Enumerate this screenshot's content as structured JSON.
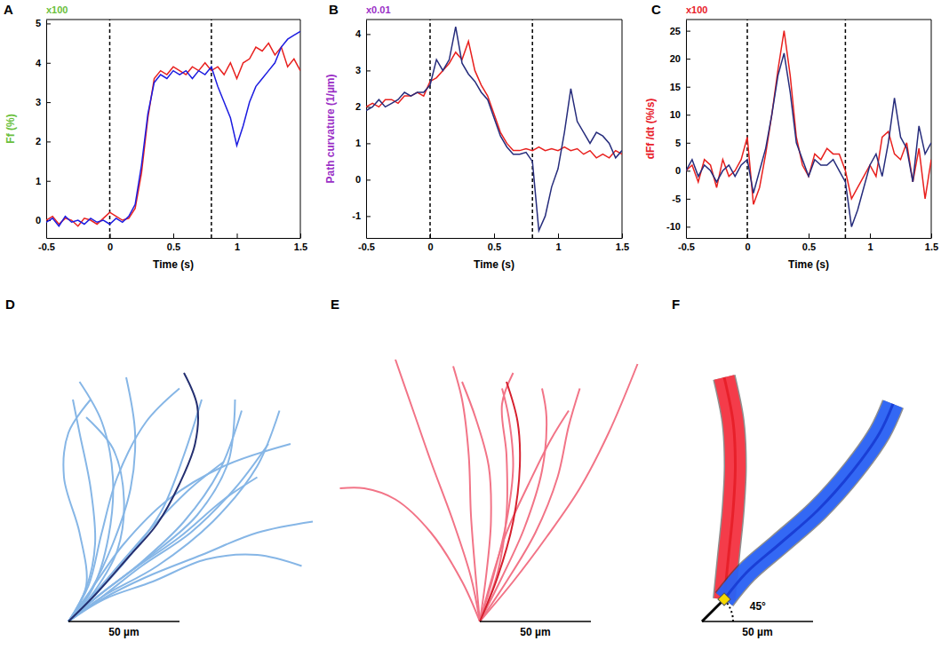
{
  "chart_data": [
    {
      "type": "line",
      "title": "A",
      "annotations": [
        "x100"
      ],
      "x_label": "Time (s)",
      "y_label": "Ff (%)",
      "x": [
        -0.5,
        -0.45,
        -0.4,
        -0.35,
        -0.3,
        -0.25,
        -0.2,
        -0.15,
        -0.1,
        -0.05,
        0,
        0.05,
        0.1,
        0.15,
        0.2,
        0.25,
        0.3,
        0.35,
        0.4,
        0.45,
        0.5,
        0.55,
        0.6,
        0.65,
        0.7,
        0.75,
        0.8,
        0.85,
        0.9,
        0.95,
        1,
        1.05,
        1.1,
        1.15,
        1.2,
        1.25,
        1.3,
        1.35,
        1.4,
        1.45,
        1.5
      ],
      "xlim": [
        -0.5,
        1.5
      ],
      "xticks": [
        -0.5,
        0,
        0.5,
        1,
        1.5
      ],
      "ylim": [
        -0.45,
        5.1
      ],
      "yticks": [
        0,
        1,
        2,
        3,
        4,
        5
      ],
      "vlines": [
        0,
        0.8
      ],
      "series": [
        {
          "color": "#e8201e",
          "values": [
            0.0,
            0.1,
            -0.1,
            0.05,
            0.0,
            -0.15,
            0.05,
            0.0,
            -0.1,
            0.05,
            0.2,
            0.1,
            0.0,
            0.05,
            0.3,
            1.2,
            2.6,
            3.6,
            3.8,
            3.7,
            3.9,
            3.8,
            3.7,
            3.9,
            3.8,
            4.0,
            3.8,
            3.9,
            3.7,
            4.0,
            3.6,
            4.0,
            4.1,
            4.4,
            4.3,
            4.5,
            4.2,
            4.4,
            3.9,
            4.1,
            3.8
          ]
        },
        {
          "color": "#1c1ce0",
          "values": [
            -0.05,
            0.05,
            -0.15,
            0.1,
            -0.05,
            0.0,
            -0.1,
            0.05,
            -0.05,
            0.0,
            -0.1,
            0.05,
            -0.05,
            0.1,
            0.4,
            1.4,
            2.7,
            3.5,
            3.7,
            3.6,
            3.8,
            3.7,
            3.8,
            3.6,
            3.8,
            3.7,
            3.9,
            3.4,
            3.0,
            2.6,
            1.9,
            2.4,
            3.0,
            3.4,
            3.6,
            3.8,
            4.0,
            4.4,
            4.6,
            4.7,
            4.8
          ]
        }
      ]
    },
    {
      "type": "line",
      "title": "B",
      "annotations": [
        "x0.01"
      ],
      "x_label": "Time (s)",
      "y_label": "Path curvature (1/µm)",
      "x": [
        -0.5,
        -0.45,
        -0.4,
        -0.35,
        -0.3,
        -0.25,
        -0.2,
        -0.15,
        -0.1,
        -0.05,
        0,
        0.05,
        0.1,
        0.15,
        0.2,
        0.25,
        0.3,
        0.35,
        0.4,
        0.45,
        0.5,
        0.55,
        0.6,
        0.65,
        0.7,
        0.75,
        0.8,
        0.85,
        0.9,
        0.95,
        1,
        1.05,
        1.1,
        1.15,
        1.2,
        1.25,
        1.3,
        1.35,
        1.4,
        1.45,
        1.5
      ],
      "xlim": [
        -0.5,
        1.5
      ],
      "xticks": [
        -0.5,
        0,
        0.5,
        1,
        1.5
      ],
      "ylim": [
        -1.6,
        4.4
      ],
      "yticks": [
        -1,
        0,
        1,
        2,
        3,
        4
      ],
      "vlines": [
        0,
        0.8
      ],
      "series": [
        {
          "color": "#e8201e",
          "values": [
            2.0,
            2.1,
            2.0,
            2.2,
            2.2,
            2.1,
            2.3,
            2.3,
            2.4,
            2.3,
            2.7,
            2.8,
            3.0,
            3.2,
            3.5,
            3.3,
            3.8,
            3.0,
            2.6,
            2.3,
            1.8,
            1.3,
            1.0,
            0.8,
            0.8,
            0.85,
            0.8,
            0.9,
            0.8,
            0.85,
            0.8,
            0.9,
            0.8,
            0.85,
            0.7,
            0.8,
            0.6,
            0.7,
            0.6,
            0.8,
            0.7
          ]
        },
        {
          "color": "#262c7c",
          "values": [
            1.9,
            2.0,
            2.2,
            2.0,
            2.1,
            2.2,
            2.4,
            2.3,
            2.4,
            2.4,
            2.6,
            3.3,
            3.0,
            3.3,
            4.2,
            3.2,
            2.9,
            2.7,
            2.4,
            2.2,
            1.7,
            1.2,
            0.9,
            0.7,
            0.7,
            0.75,
            0.5,
            -1.4,
            -1.0,
            -0.2,
            0.3,
            1.3,
            2.5,
            1.6,
            1.3,
            1.0,
            1.3,
            1.2,
            1.0,
            0.6,
            0.8
          ]
        }
      ]
    },
    {
      "type": "line",
      "title": "C",
      "annotations": [
        "x100"
      ],
      "x_label": "Time (s)",
      "y_label": "dFf /dt (%/s)",
      "x": [
        -0.5,
        -0.45,
        -0.4,
        -0.35,
        -0.3,
        -0.25,
        -0.2,
        -0.15,
        -0.1,
        -0.05,
        0,
        0.05,
        0.1,
        0.15,
        0.2,
        0.25,
        0.3,
        0.35,
        0.4,
        0.45,
        0.5,
        0.55,
        0.6,
        0.65,
        0.7,
        0.75,
        0.8,
        0.85,
        0.9,
        0.95,
        1,
        1.05,
        1.1,
        1.15,
        1.2,
        1.25,
        1.3,
        1.35,
        1.4,
        1.45,
        1.5
      ],
      "xlim": [
        -0.5,
        1.5
      ],
      "xticks": [
        -0.5,
        0,
        0.5,
        1,
        1.5
      ],
      "ylim": [
        -12,
        27
      ],
      "yticks": [
        -10,
        -5,
        0,
        5,
        10,
        15,
        20,
        25
      ],
      "vlines": [
        0,
        0.8
      ],
      "series": [
        {
          "color": "#e8201e",
          "values": [
            0,
            1,
            -2,
            2,
            1,
            -3,
            2,
            -1,
            0,
            2,
            6,
            -6,
            -3,
            3,
            10,
            18,
            25,
            17,
            6,
            1,
            -1,
            3,
            2,
            4,
            3,
            3,
            0,
            -5,
            -3,
            -1,
            1,
            -1,
            6,
            7,
            3,
            2,
            5,
            -2,
            4,
            -5,
            2
          ]
        },
        {
          "color": "#262c7c",
          "values": [
            0,
            2,
            -1,
            1,
            0,
            -2,
            0,
            1,
            -1,
            1,
            2,
            -4,
            0,
            4,
            10,
            17,
            21,
            14,
            5,
            2,
            -1,
            2,
            1,
            1,
            2,
            0,
            -2,
            -10,
            -7,
            -3,
            1,
            3,
            -1,
            5,
            13,
            6,
            4,
            -2,
            8,
            3,
            5
          ]
        }
      ]
    },
    {
      "type": "line",
      "title": "D",
      "tick_labels": false,
      "xlim": [
        -5,
        115
      ],
      "ylim": [
        -5,
        125
      ],
      "color": "#86b6e6",
      "scale_bar": {
        "value": 50,
        "label": "50 µm"
      },
      "series": [
        {
          "x": [
            0,
            8,
            12,
            10,
            5,
            2
          ],
          "values": [
            0,
            15,
            35,
            60,
            85,
            100
          ]
        },
        {
          "x": [
            0,
            10,
            20,
            28,
            30,
            26
          ],
          "values": [
            0,
            14,
            35,
            60,
            85,
            110
          ]
        },
        {
          "x": [
            0,
            12,
            25,
            40,
            55,
            70
          ],
          "values": [
            0,
            13,
            28,
            45,
            60,
            72
          ]
        },
        {
          "x": [
            0,
            14,
            30,
            50,
            70,
            85
          ],
          "values": [
            0,
            12,
            24,
            38,
            55,
            65
          ]
        },
        {
          "x": [
            0,
            15,
            35,
            60,
            85,
            110
          ],
          "values": [
            0,
            10,
            20,
            30,
            40,
            45
          ]
        },
        {
          "x": [
            0,
            15,
            33,
            55,
            75,
            90
          ],
          "values": [
            0,
            11,
            25,
            40,
            60,
            80
          ]
        },
        {
          "x": [
            0,
            9,
            15,
            22,
            35,
            50
          ],
          "values": [
            0,
            16,
            40,
            65,
            90,
            105
          ]
        },
        {
          "x": [
            0,
            11,
            18,
            20,
            15,
            5
          ],
          "values": [
            0,
            15,
            38,
            65,
            90,
            108
          ]
        },
        {
          "x": [
            0,
            13,
            28,
            42,
            52,
            60
          ],
          "values": [
            0,
            13,
            30,
            50,
            75,
            100
          ]
        },
        {
          "x": [
            0,
            14,
            32,
            52,
            68,
            78
          ],
          "values": [
            0,
            12,
            26,
            45,
            68,
            95
          ]
        },
        {
          "x": [
            0,
            16,
            38,
            62,
            85,
            105
          ],
          "values": [
            0,
            10,
            18,
            28,
            30,
            25
          ]
        },
        {
          "x": [
            0,
            12,
            22,
            25,
            20,
            8
          ],
          "values": [
            0,
            14,
            32,
            55,
            78,
            92
          ]
        },
        {
          "x": [
            0,
            14,
            35,
            58,
            72,
            75
          ],
          "values": [
            0,
            12,
            28,
            48,
            72,
            100
          ]
        },
        {
          "x": [
            0,
            15,
            40,
            65,
            85,
            95
          ],
          "values": [
            0,
            11,
            25,
            45,
            70,
            95
          ]
        },
        {
          "x": [
            0,
            10,
            25,
            45,
            70,
            100
          ],
          "values": [
            0,
            14,
            35,
            55,
            70,
            80
          ]
        },
        {
          "x": [
            0,
            8,
            5,
            -2,
            0,
            10
          ],
          "values": [
            0,
            16,
            40,
            65,
            85,
            100
          ]
        },
        {
          "color": "#242f70",
          "x": [
            0,
            12,
            27,
            40,
            50,
            57,
            58,
            52
          ],
          "values": [
            0,
            12,
            29,
            44,
            62,
            80,
            97,
            112
          ]
        }
      ]
    },
    {
      "type": "line",
      "title": "E",
      "tick_labels": false,
      "xlim": [
        -66,
        75
      ],
      "ylim": [
        -5,
        125
      ],
      "color": "#f27487",
      "scale_bar": {
        "value": 50,
        "label": "50 µm"
      },
      "series": [
        {
          "x": [
            0,
            -4,
            -12,
            -22,
            -30,
            -38
          ],
          "values": [
            0,
            20,
            45,
            72,
            95,
            118
          ]
        },
        {
          "x": [
            0,
            -8,
            -22,
            -38,
            -52,
            -63
          ],
          "values": [
            0,
            18,
            40,
            55,
            60,
            60
          ]
        },
        {
          "x": [
            0,
            3,
            5,
            4,
            -2,
            -8
          ],
          "values": [
            0,
            22,
            45,
            70,
            92,
            108
          ]
        },
        {
          "x": [
            0,
            6,
            12,
            15,
            13,
            10
          ],
          "values": [
            0,
            20,
            45,
            70,
            92,
            105
          ]
        },
        {
          "x": [
            0,
            10,
            20,
            28,
            30,
            28
          ],
          "values": [
            0,
            20,
            42,
            68,
            92,
            105
          ]
        },
        {
          "x": [
            0,
            12,
            25,
            35,
            40,
            45
          ],
          "values": [
            0,
            18,
            40,
            65,
            88,
            105
          ]
        },
        {
          "x": [
            0,
            15,
            30,
            45,
            58,
            71
          ],
          "values": [
            0,
            18,
            38,
            60,
            85,
            116
          ]
        },
        {
          "x": [
            0,
            8,
            12,
            12,
            10,
            15
          ],
          "values": [
            0,
            22,
            48,
            75,
            98,
            112
          ]
        },
        {
          "x": [
            0,
            -2,
            -4,
            -5,
            -8,
            -12
          ],
          "values": [
            0,
            22,
            48,
            75,
            100,
            115
          ]
        },
        {
          "x": [
            0,
            5,
            12,
            22,
            32,
            40
          ],
          "values": [
            0,
            18,
            40,
            62,
            82,
            95
          ]
        },
        {
          "color": "#d6202e",
          "x": [
            0,
            8,
            15,
            18,
            17,
            12
          ],
          "values": [
            0,
            20,
            45,
            70,
            90,
            108
          ]
        }
      ]
    },
    {
      "type": "line",
      "title": "F",
      "tick_labels": false,
      "xlim": [
        -8,
        100
      ],
      "ylim": [
        -5,
        125
      ],
      "scale_bar": {
        "value": 50,
        "label": "50 µm"
      },
      "angle": {
        "value": 45,
        "label": "45°"
      },
      "series": [
        {
          "color": "#e8202a",
          "line_style": "tube",
          "x": [
            10,
            12,
            14,
            15,
            14,
            10
          ],
          "values": [
            10,
            30,
            50,
            70,
            90,
            110
          ]
        },
        {
          "color": "#1a3fd6",
          "line_style": "tube",
          "x": [
            10,
            20,
            35,
            52,
            68,
            80,
            86
          ],
          "values": [
            10,
            22,
            35,
            50,
            68,
            85,
            98
          ]
        }
      ]
    }
  ]
}
